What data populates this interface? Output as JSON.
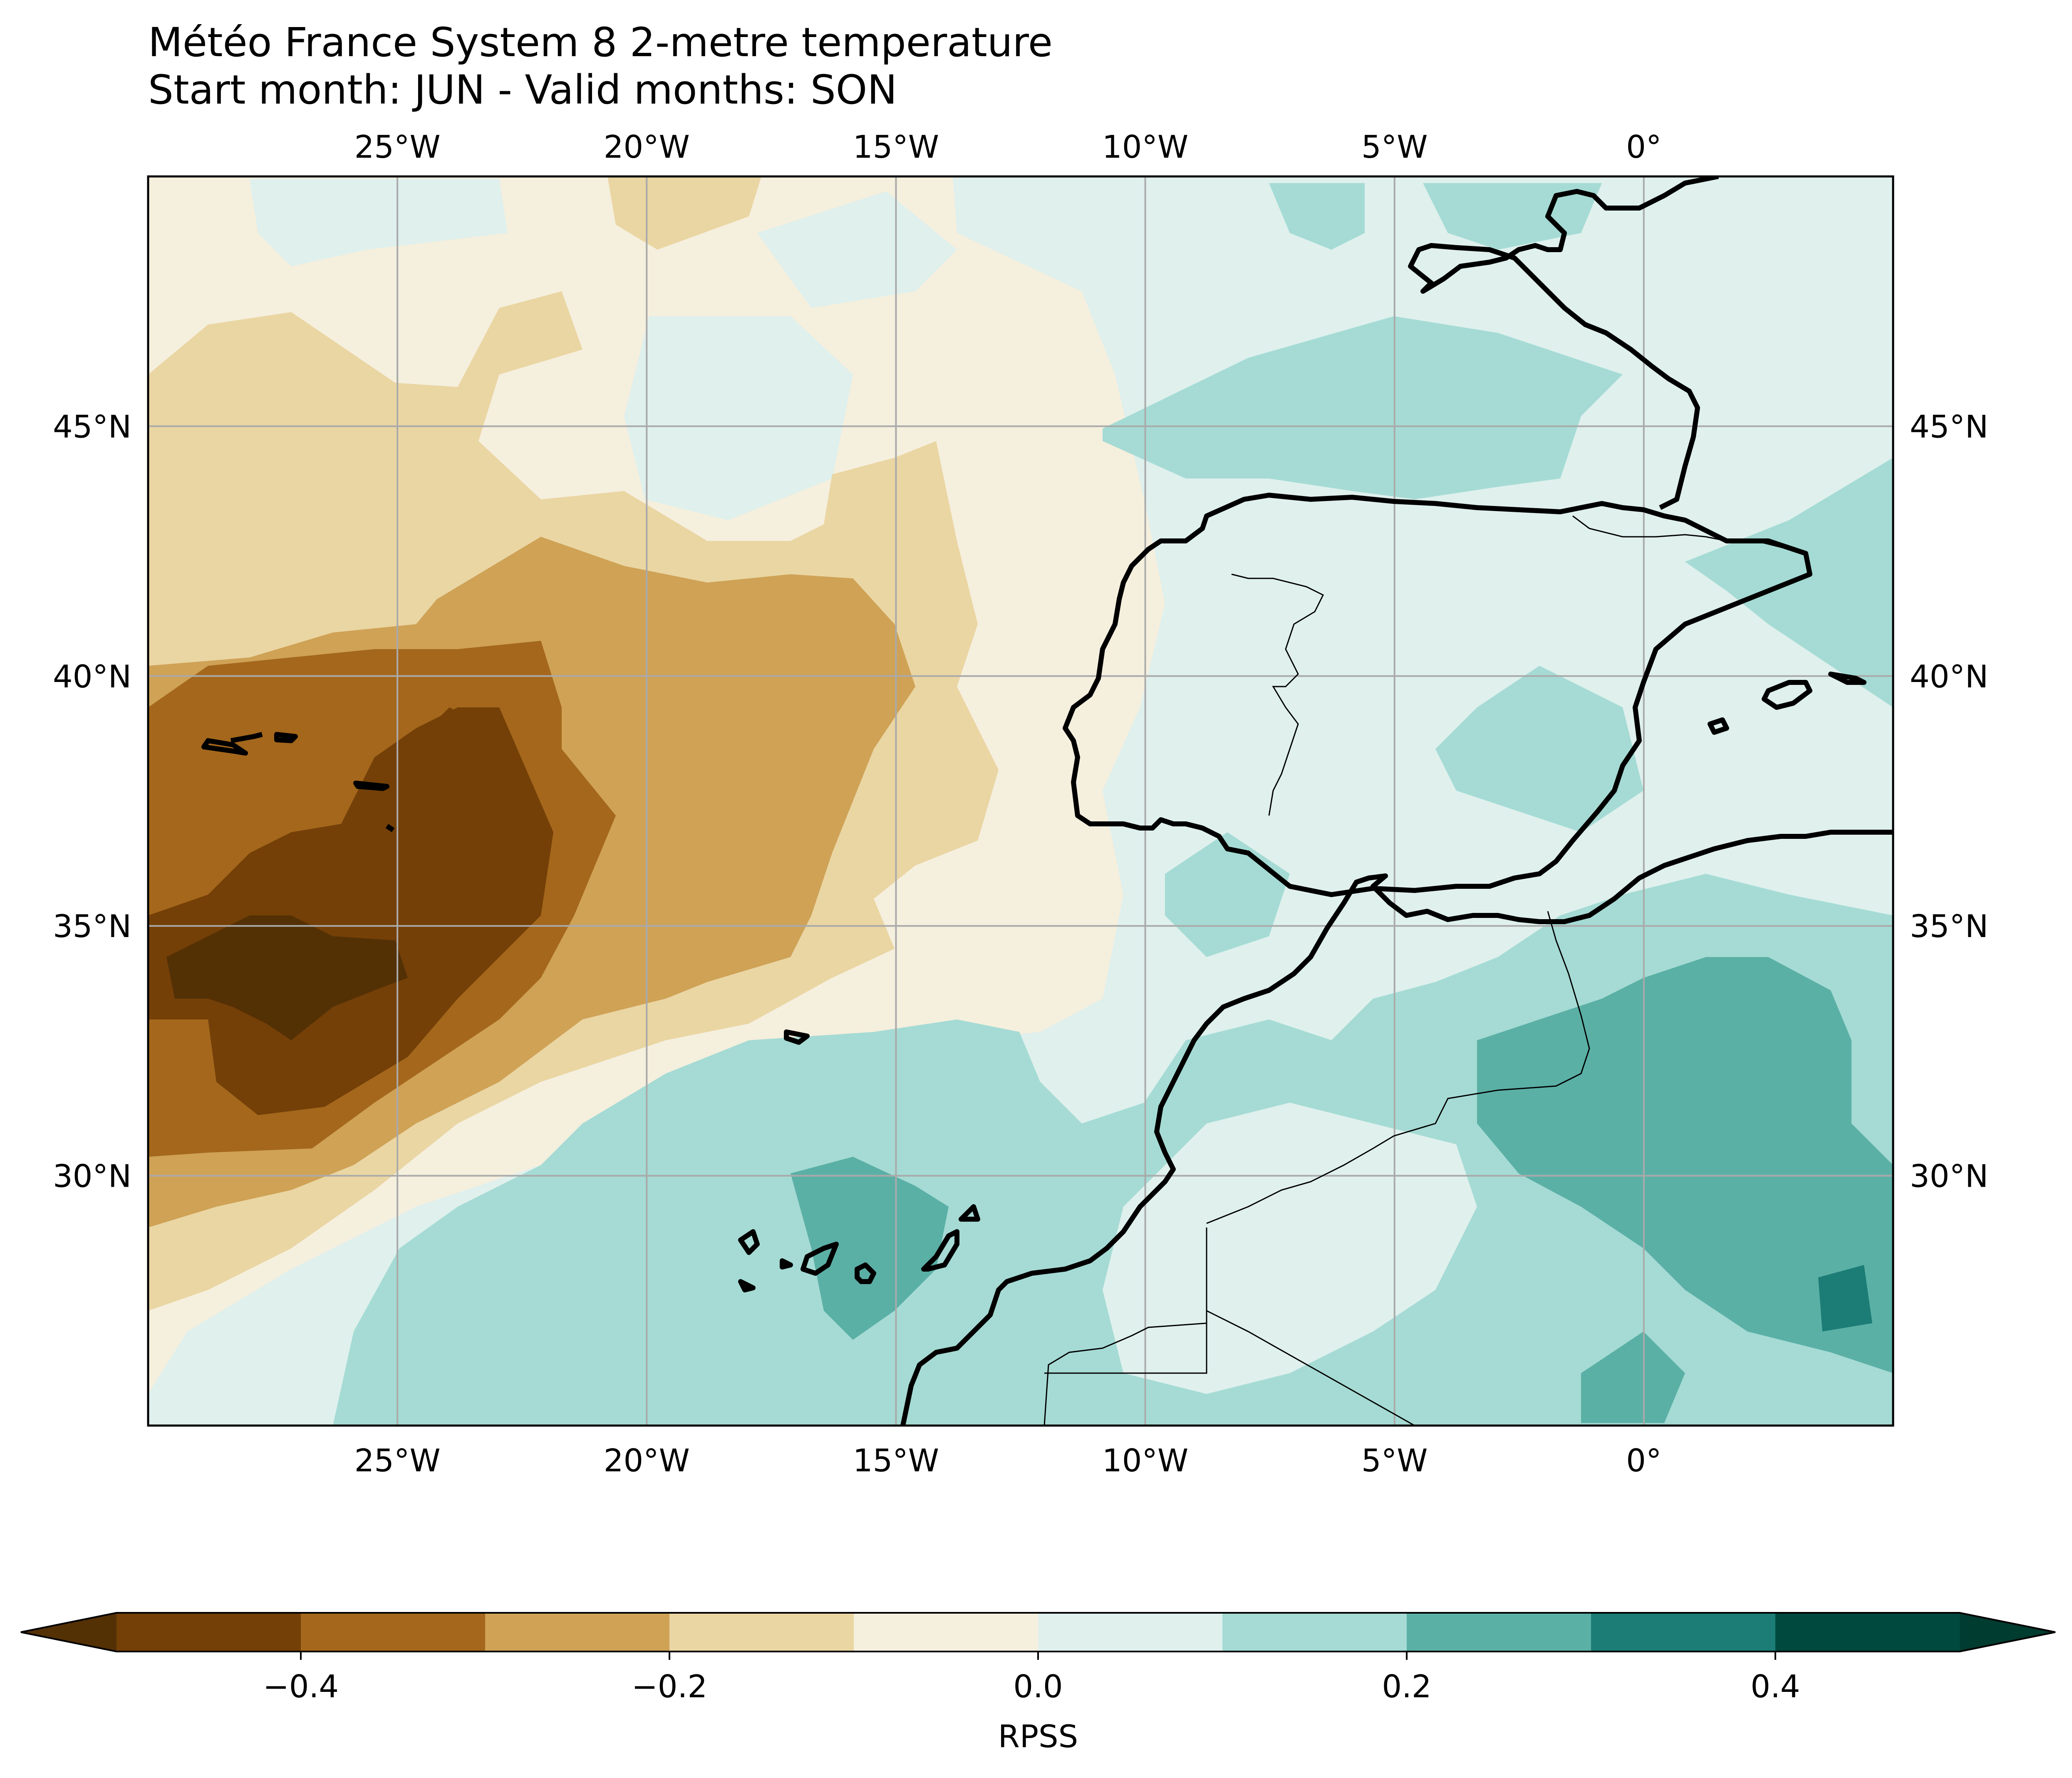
{
  "title": "Météo France System 8 2-metre temperature",
  "subtitle": "Start month: JUN - Valid months: SON",
  "map": {
    "lon_min": -30,
    "lon_max": 5,
    "lat_min": 25,
    "lat_max": 50,
    "lon_ticks": [
      {
        "value": -25,
        "label": "25°W"
      },
      {
        "value": -20,
        "label": "20°W"
      },
      {
        "value": -15,
        "label": "15°W"
      },
      {
        "value": -10,
        "label": "10°W"
      },
      {
        "value": -5,
        "label": "5°W"
      },
      {
        "value": 0,
        "label": "0°"
      }
    ],
    "lat_ticks": [
      {
        "value": 45,
        "label": "45°N"
      },
      {
        "value": 40,
        "label": "40°N"
      },
      {
        "value": 35,
        "label": "35°N"
      },
      {
        "value": 30,
        "label": "30°N"
      }
    ],
    "gridlines": true,
    "colors": {
      "lt_m04": "#543005",
      "m04_m03": "#744007",
      "m03_m02": "#a4671c",
      "m02_m01": "#cfa256",
      "m01_0": "#ead6a3",
      "0_01": "#f5efde",
      "01_02": "#dff0ed",
      "02_03": "#a5dbd4",
      "03_04": "#5bb0a6",
      "04_05": "#1b7d75",
      "gt_05": "#00493f"
    },
    "regions": {
      "background_rpss": "0.0 to 0.1",
      "north_atlantic_west": "-0.1 to 0.0",
      "azores_core": "-0.4 to -0.3",
      "azores_deep": "below -0.4",
      "iberia_east": "0.1 to 0.2",
      "algeria_core": "0.2 to 0.3",
      "canaries": "0.2 to 0.3"
    }
  },
  "colorbar": {
    "label": "RPSS",
    "levels": [
      -0.5,
      -0.4,
      -0.3,
      -0.2,
      -0.1,
      0.0,
      0.1,
      0.2,
      0.3,
      0.4,
      0.5
    ],
    "ticks": [
      {
        "value": -0.4,
        "label": "−0.4"
      },
      {
        "value": -0.2,
        "label": "−0.2"
      },
      {
        "value": 0.0,
        "label": "0.0"
      },
      {
        "value": 0.2,
        "label": "0.2"
      },
      {
        "value": 0.4,
        "label": "0.4"
      }
    ],
    "colors": [
      "#744007",
      "#a4671c",
      "#cfa256",
      "#ead6a3",
      "#f5efde",
      "#dff0ed",
      "#a5dbd4",
      "#5bb0a6",
      "#1b7d75",
      "#00493f"
    ],
    "extend_low": "#543005",
    "extend_high": "#003c30"
  }
}
